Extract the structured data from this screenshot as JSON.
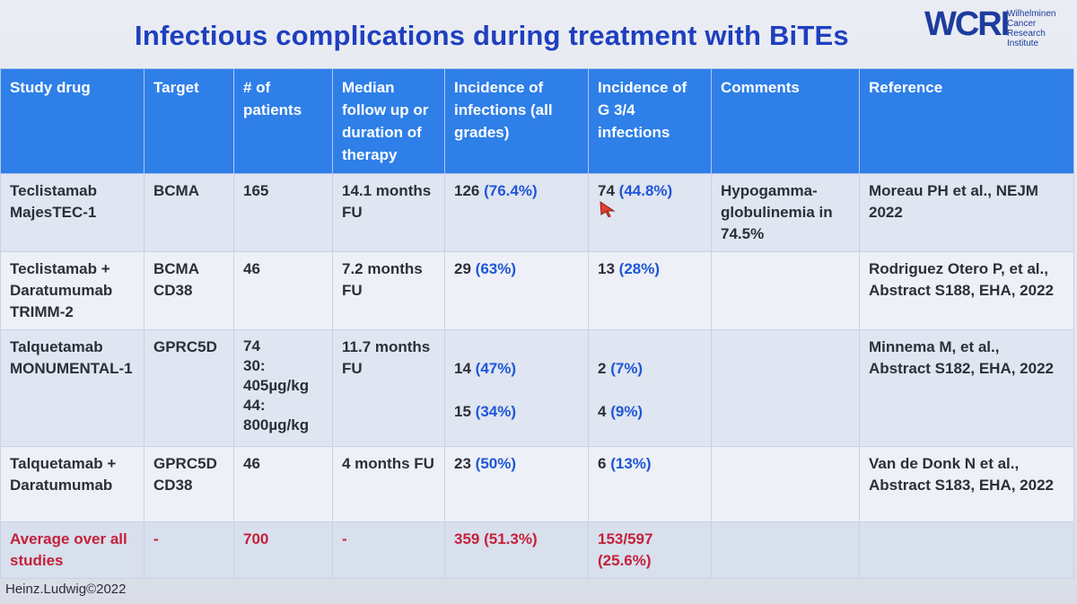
{
  "title": "Infectious complications during treatment with BiTEs",
  "logo": {
    "mark": "WCRI",
    "sub": [
      "Wilhelminen",
      "Cancer Research",
      "Institute"
    ]
  },
  "headers": [
    "Study drug",
    "Target",
    "# of patients",
    "Median follow up or duration of therapy",
    "Incidence of infections (all grades)",
    "Incidence of G 3/4 infections",
    "Comments",
    "Reference"
  ],
  "rows": [
    {
      "drug": [
        "Teclistamab",
        "MajesTEC-1"
      ],
      "target": [
        "BCMA"
      ],
      "patients": [
        "165"
      ],
      "followup": [
        "14.1 months",
        "FU"
      ],
      "all_grades": [
        {
          "n": "126",
          "pct": "(76.4%)"
        }
      ],
      "g34": [
        {
          "n": "74",
          "pct": "(44.8%)"
        }
      ],
      "comments": "Hypogamma-globulinemia in 74.5%",
      "reference": [
        "Moreau PH et al., NEJM",
        "2022"
      ]
    },
    {
      "drug": [
        "Teclistamab +",
        "Daratumumab",
        "TRIMM-2"
      ],
      "target": [
        "BCMA",
        "CD38"
      ],
      "patients": [
        "46"
      ],
      "followup": [
        "7.2 months",
        "FU"
      ],
      "all_grades": [
        {
          "n": "29",
          "pct": "(63%)"
        }
      ],
      "g34": [
        {
          "n": "13",
          "pct": "(28%)"
        }
      ],
      "comments": "",
      "reference": [
        "Rodriguez Otero P, et al.,",
        "Abstract S188, EHA, 2022"
      ]
    },
    {
      "drug": [
        "Talquetamab",
        "MONUMENTAL-1"
      ],
      "target": [
        "GPRC5D"
      ],
      "patients": [
        "74",
        "30:",
        "405µg/kg",
        "44:",
        "800µg/kg"
      ],
      "followup": [
        "11.7 months",
        "FU"
      ],
      "all_grades": [
        {
          "n": "14",
          "pct": "(47%)"
        },
        {
          "n": "15",
          "pct": "(34%)"
        }
      ],
      "g34": [
        {
          "n": "2",
          "pct": "(7%)"
        },
        {
          "n": "4",
          "pct": "(9%)"
        }
      ],
      "comments": "",
      "reference": [
        "Minnema M, et al.,",
        "Abstract S182, EHA, 2022"
      ]
    },
    {
      "drug": [
        "Talquetamab +",
        "Daratumumab"
      ],
      "target": [
        "GPRC5D",
        "CD38"
      ],
      "patients": [
        "46"
      ],
      "followup": [
        "4 months FU"
      ],
      "all_grades": [
        {
          "n": "23",
          "pct": "(50%)"
        }
      ],
      "g34": [
        {
          "n": "6",
          "pct": "(13%)"
        }
      ],
      "comments": "",
      "reference": [
        "Van de Donk N et al.,",
        "Abstract S183, EHA, 2022"
      ]
    }
  ],
  "average": {
    "label": "Average over all studies",
    "target": "-",
    "patients": "700",
    "followup": "-",
    "all_grades": "359 (51.3%)",
    "g34": "153/597 (25.6%)"
  },
  "footer": "Heinz.Ludwig©2022",
  "colors": {
    "title": "#1f3fbf",
    "header_bg": "#2e7fe8",
    "pct": "#1e56d8",
    "average": "#c4213a"
  }
}
